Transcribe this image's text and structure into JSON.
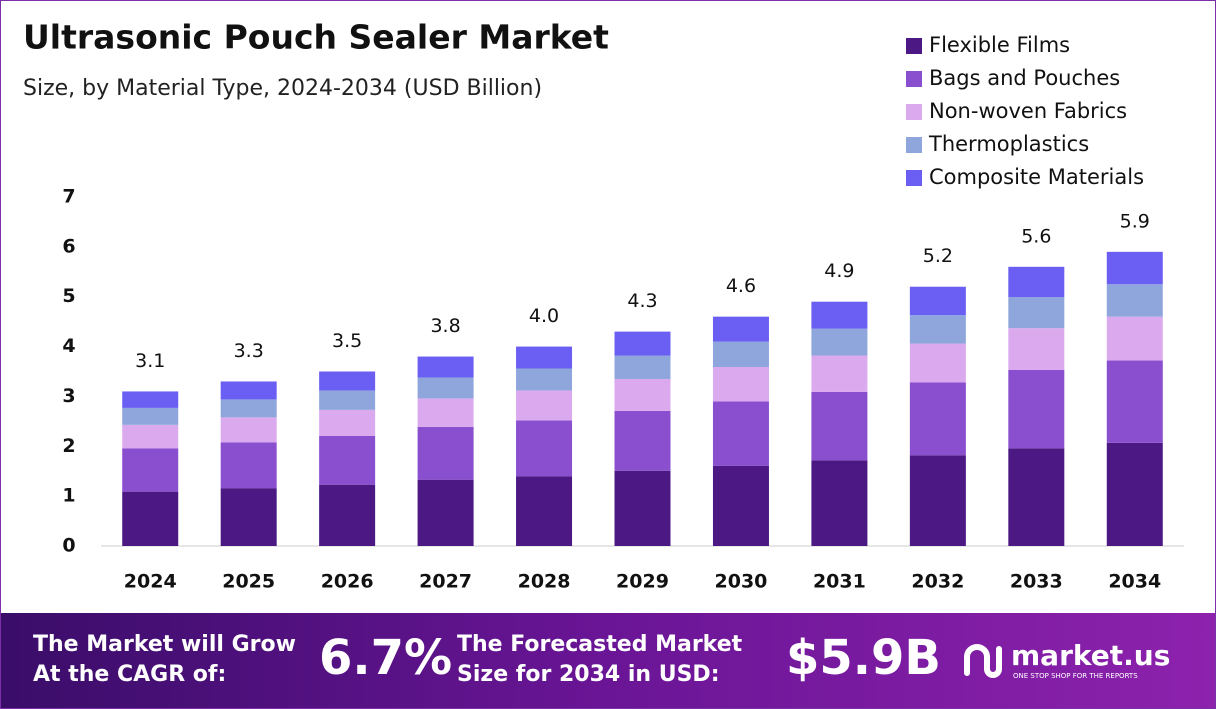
{
  "chart_data": {
    "type": "stacked_bar",
    "title": "Ultrasonic Pouch Sealer Market",
    "subtitle": "Size, by Material Type, 2024-2034 (USD Billion)",
    "categories": [
      "2024",
      "2025",
      "2026",
      "2027",
      "2028",
      "2029",
      "2030",
      "2031",
      "2032",
      "2033",
      "2034"
    ],
    "series": [
      {
        "name": "Flexible Films",
        "color": "#4b1884",
        "values": [
          1.09,
          1.16,
          1.23,
          1.33,
          1.4,
          1.51,
          1.61,
          1.72,
          1.82,
          1.96,
          2.07
        ]
      },
      {
        "name": "Bags and Pouches",
        "color": "#8a4fcf",
        "values": [
          0.87,
          0.92,
          0.98,
          1.06,
          1.12,
          1.2,
          1.29,
          1.37,
          1.46,
          1.57,
          1.65
        ]
      },
      {
        "name": "Non-woven Fabrics",
        "color": "#dba9ee",
        "values": [
          0.47,
          0.5,
          0.52,
          0.57,
          0.6,
          0.64,
          0.69,
          0.73,
          0.78,
          0.84,
          0.88
        ]
      },
      {
        "name": "Thermoplastics",
        "color": "#8fa6dc",
        "values": [
          0.34,
          0.36,
          0.39,
          0.42,
          0.44,
          0.47,
          0.51,
          0.54,
          0.57,
          0.62,
          0.65
        ]
      },
      {
        "name": "Composite Materials",
        "color": "#6b5ef2",
        "values": [
          0.33,
          0.36,
          0.38,
          0.42,
          0.44,
          0.48,
          0.5,
          0.54,
          0.57,
          0.61,
          0.65
        ]
      }
    ],
    "totals": [
      3.1,
      3.3,
      3.5,
      3.8,
      4.0,
      4.3,
      4.6,
      4.9,
      5.2,
      5.6,
      5.9
    ],
    "total_labels": [
      "3.1",
      "3.3",
      "3.5",
      "3.8",
      "4.0",
      "4.3",
      "4.6",
      "4.9",
      "5.2",
      "5.6",
      "5.9"
    ],
    "ylim": [
      0,
      7
    ],
    "yticks": [
      0,
      1,
      2,
      3,
      4,
      5,
      6,
      7
    ],
    "grid": false,
    "legend": "top-right"
  },
  "footer": {
    "cagr_text": [
      "The Market will Grow",
      "At the CAGR of:"
    ],
    "cagr": "6.7%",
    "forecast_text": [
      "The Forecasted Market",
      "Size for 2034 in USD:"
    ],
    "forecast": "$5.9B",
    "brand": "market.us",
    "tagline": "ONE STOP SHOP FOR THE REPORTS"
  }
}
